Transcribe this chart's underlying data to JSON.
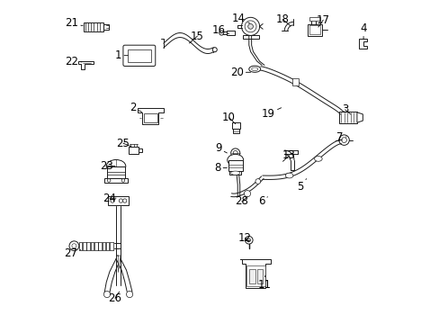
{
  "bg_color": "#ffffff",
  "line_color": "#1a1a1a",
  "lw": 0.7,
  "fontsize": 8.5,
  "label_configs": {
    "21": [
      0.04,
      0.93,
      0.075,
      0.922
    ],
    "22": [
      0.04,
      0.81,
      0.072,
      0.81
    ],
    "1": [
      0.185,
      0.83,
      0.215,
      0.83
    ],
    "15": [
      0.43,
      0.89,
      0.405,
      0.868
    ],
    "2": [
      0.23,
      0.668,
      0.258,
      0.655
    ],
    "25": [
      0.2,
      0.558,
      0.225,
      0.548
    ],
    "23": [
      0.148,
      0.488,
      0.175,
      0.488
    ],
    "24": [
      0.158,
      0.388,
      0.178,
      0.388
    ],
    "27": [
      0.038,
      0.218,
      0.068,
      0.228
    ],
    "26": [
      0.175,
      0.078,
      0.188,
      0.098
    ],
    "14": [
      0.558,
      0.945,
      0.592,
      0.93
    ],
    "16": [
      0.495,
      0.908,
      0.528,
      0.897
    ],
    "18": [
      0.695,
      0.942,
      0.718,
      0.922
    ],
    "17": [
      0.82,
      0.94,
      0.805,
      0.918
    ],
    "4": [
      0.945,
      0.915,
      0.945,
      0.88
    ],
    "20": [
      0.552,
      0.778,
      0.595,
      0.778
    ],
    "19": [
      0.65,
      0.65,
      0.69,
      0.668
    ],
    "3": [
      0.888,
      0.662,
      0.905,
      0.648
    ],
    "7": [
      0.872,
      0.578,
      0.892,
      0.578
    ],
    "5": [
      0.748,
      0.422,
      0.768,
      0.448
    ],
    "6": [
      0.628,
      0.378,
      0.648,
      0.392
    ],
    "28": [
      0.568,
      0.378,
      0.585,
      0.392
    ],
    "10": [
      0.528,
      0.638,
      0.548,
      0.618
    ],
    "9": [
      0.495,
      0.542,
      0.522,
      0.528
    ],
    "8": [
      0.492,
      0.482,
      0.522,
      0.482
    ],
    "13": [
      0.715,
      0.52,
      0.695,
      0.502
    ],
    "12": [
      0.578,
      0.265,
      0.588,
      0.252
    ],
    "11": [
      0.638,
      0.118,
      0.64,
      0.148
    ]
  }
}
